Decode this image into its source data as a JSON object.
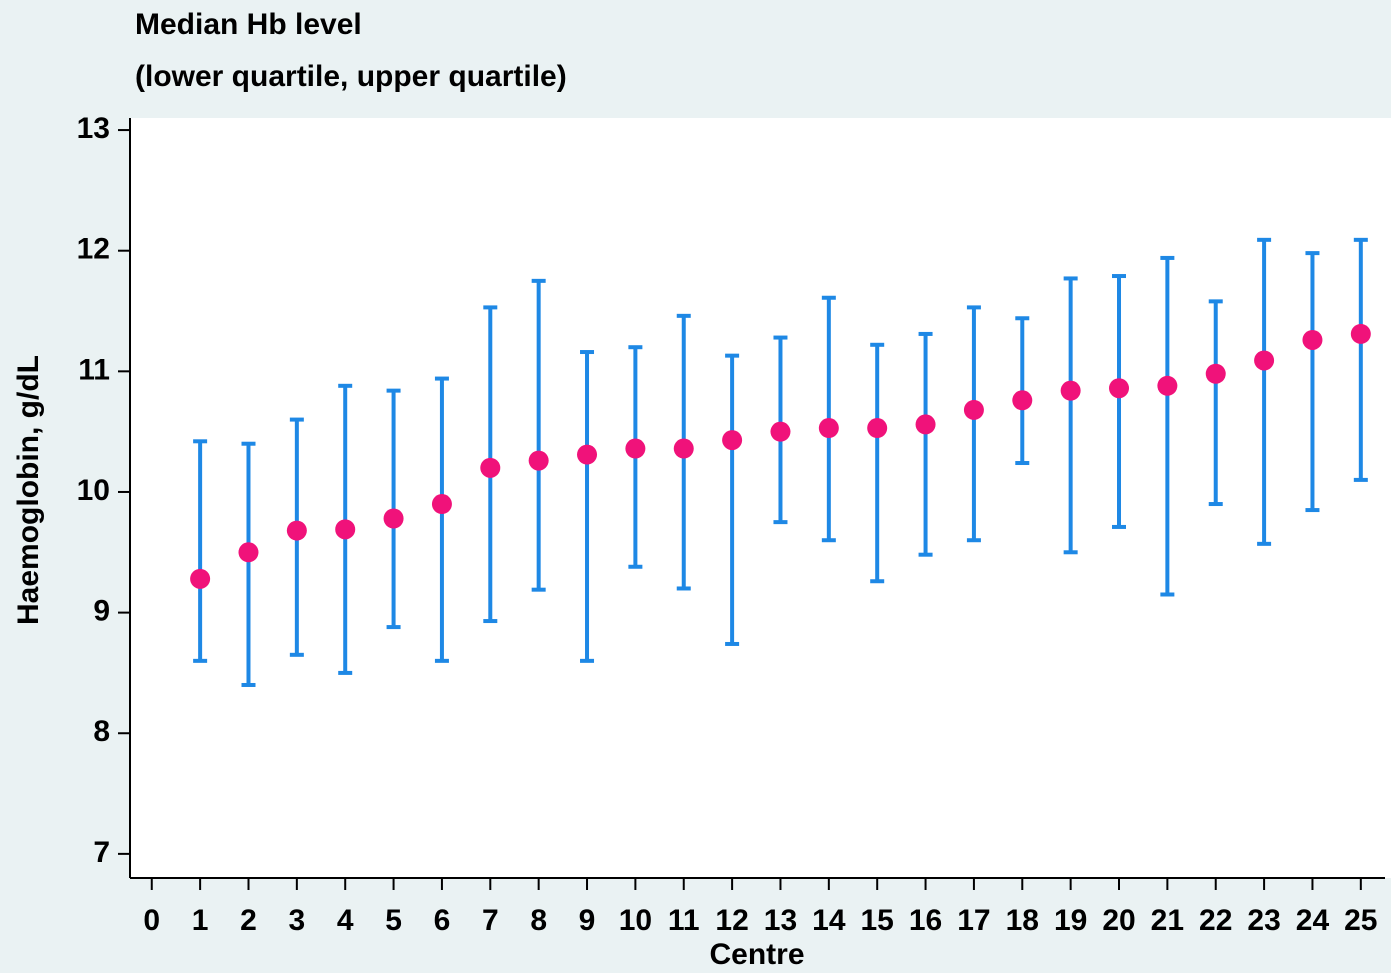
{
  "chart_data": {
    "type": "errorbar",
    "title": "Median Hb level",
    "subtitle": "(lower quartile, upper quartile)",
    "x_label": "Centre",
    "y_label": "Haemoglobin, g/dL",
    "x": [
      1,
      2,
      3,
      4,
      5,
      6,
      7,
      8,
      9,
      10,
      11,
      12,
      13,
      14,
      15,
      16,
      17,
      18,
      19,
      20,
      21,
      22,
      23,
      24,
      25
    ],
    "median": [
      9.28,
      9.5,
      9.68,
      9.69,
      9.78,
      9.9,
      10.2,
      10.26,
      10.31,
      10.36,
      10.36,
      10.43,
      10.5,
      10.53,
      10.53,
      10.56,
      10.68,
      10.76,
      10.84,
      10.86,
      10.88,
      10.98,
      11.09,
      11.26,
      11.31
    ],
    "lower": [
      8.6,
      8.4,
      8.65,
      8.5,
      8.88,
      8.6,
      8.93,
      9.19,
      8.6,
      9.38,
      9.2,
      8.74,
      9.75,
      9.6,
      9.26,
      9.48,
      9.6,
      10.24,
      9.5,
      9.71,
      9.15,
      9.9,
      9.57,
      9.85,
      10.1
    ],
    "upper": [
      10.42,
      10.4,
      10.6,
      10.88,
      10.84,
      10.94,
      11.53,
      11.75,
      11.16,
      11.2,
      11.46,
      11.13,
      11.28,
      11.61,
      11.22,
      11.31,
      11.53,
      11.44,
      11.77,
      11.79,
      11.94,
      11.58,
      12.09,
      11.98,
      12.09
    ],
    "median_color": "#f0127a",
    "bar_color": "#1e88e5",
    "xlim": [
      -0.45,
      25.5
    ],
    "ylim": [
      6.8,
      13.1
    ],
    "xticks": [
      0,
      1,
      2,
      3,
      4,
      5,
      6,
      7,
      8,
      9,
      10,
      11,
      12,
      13,
      14,
      15,
      16,
      17,
      18,
      19,
      20,
      21,
      22,
      23,
      24,
      25
    ],
    "yticks": [
      7,
      8,
      9,
      10,
      11,
      12,
      13
    ]
  }
}
